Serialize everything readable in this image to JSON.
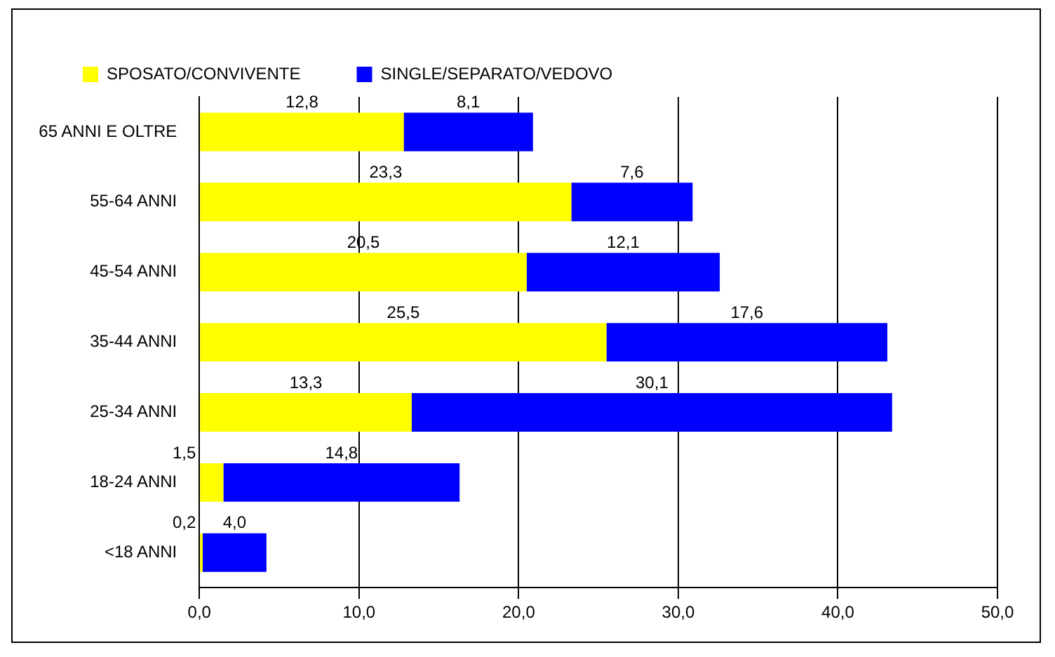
{
  "chart_data": {
    "type": "bar",
    "orientation": "horizontal",
    "stacked": true,
    "categories": [
      "65 ANNI E OLTRE",
      "55-64 ANNI",
      "45-54 ANNI",
      "35-44 ANNI",
      "25-34 ANNI",
      "18-24 ANNI",
      "<18 ANNI"
    ],
    "series": [
      {
        "name": "SPOSATO/CONVIVENTE",
        "color": "#ffff00",
        "values": [
          12.8,
          23.3,
          20.5,
          25.5,
          13.3,
          1.5,
          0.2
        ],
        "value_labels": [
          "12,8",
          "23,3",
          "20,5",
          "25,5",
          "13,3",
          "1,5",
          "0,2"
        ]
      },
      {
        "name": "SINGLE/SEPARATO/VEDOVO",
        "color": "#0000ff",
        "values": [
          8.1,
          7.6,
          12.1,
          17.6,
          30.1,
          14.8,
          4.0
        ],
        "value_labels": [
          "8,1",
          "7,6",
          "12,1",
          "17,6",
          "30,1",
          "14,8",
          "4,0"
        ]
      }
    ],
    "xlim": [
      0,
      50
    ],
    "xticks": [
      {
        "value": 0,
        "label": "0,0"
      },
      {
        "value": 10,
        "label": "10,0"
      },
      {
        "value": 20,
        "label": "20,0"
      },
      {
        "value": 30,
        "label": "30,0"
      },
      {
        "value": 40,
        "label": "40,0"
      },
      {
        "value": 50,
        "label": "50,0"
      }
    ],
    "grid": "x",
    "legend": "top"
  }
}
